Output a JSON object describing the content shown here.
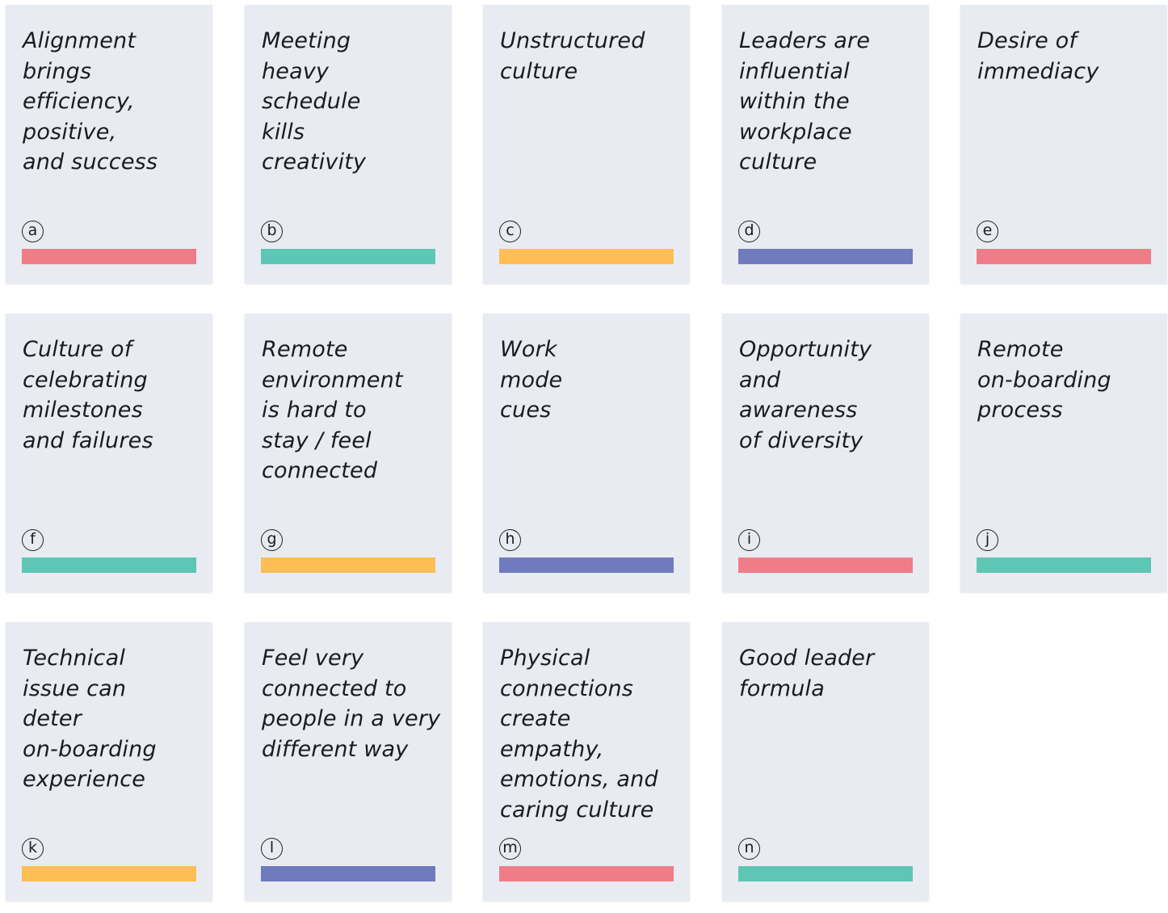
{
  "colors": {
    "pink": "#f07c87",
    "teal": "#5dc6b4",
    "yellow": "#fcbe55",
    "blue": "#6f7bbd",
    "card_background": "#e9ebf2"
  },
  "cards": [
    {
      "text": "Alignment\nbrings\nefficiency,\npositive,\nand success",
      "letter": "a",
      "color": "pink"
    },
    {
      "text": "Meeting\nheavy\nschedule\nkills\ncreativity",
      "letter": "b",
      "color": "teal"
    },
    {
      "text": "Unstructured\nculture",
      "letter": "c",
      "color": "yellow"
    },
    {
      "text": "Leaders are\ninfluential\nwithin the\nworkplace\nculture",
      "letter": "d",
      "color": "blue"
    },
    {
      "text": "Desire of\nimmediacy",
      "letter": "e",
      "color": "pink"
    },
    {
      "text": "Culture of\ncelebrating\nmilestones\nand failures",
      "letter": "f",
      "color": "teal"
    },
    {
      "text": "Remote\nenvironment\nis hard to\nstay / feel\nconnected",
      "letter": "g",
      "color": "yellow"
    },
    {
      "text": "Work\nmode\ncues",
      "letter": "h",
      "color": "blue"
    },
    {
      "text": "Opportunity\nand\nawareness\nof diversity",
      "letter": "i",
      "color": "pink"
    },
    {
      "text": "Remote\non-boarding\nprocess",
      "letter": "j",
      "color": "teal"
    },
    {
      "text": "Technical\nissue can\ndeter\non-boarding\nexperience",
      "letter": "k",
      "color": "yellow"
    },
    {
      "text": "Feel very\nconnected to\npeople in a very\ndifferent way",
      "letter": "l",
      "color": "blue"
    },
    {
      "text": "Physical\nconnections\ncreate\nempathy,\nemotions, and\ncaring culture",
      "letter": "m",
      "color": "pink"
    },
    {
      "text": "Good leader\nformula",
      "letter": "n",
      "color": "teal"
    }
  ]
}
